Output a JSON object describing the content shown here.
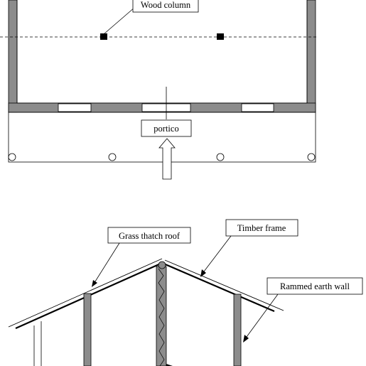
{
  "labels": {
    "wood_column": "Wood column",
    "portico": "portico",
    "grass_thatch_roof": "Grass thatch roof",
    "timber_frame": "Timber frame",
    "rammed_earth_wall": "Rammed earth wall"
  },
  "colors": {
    "wall": "#8c8c8c",
    "line": "#000000",
    "background": "#ffffff"
  }
}
